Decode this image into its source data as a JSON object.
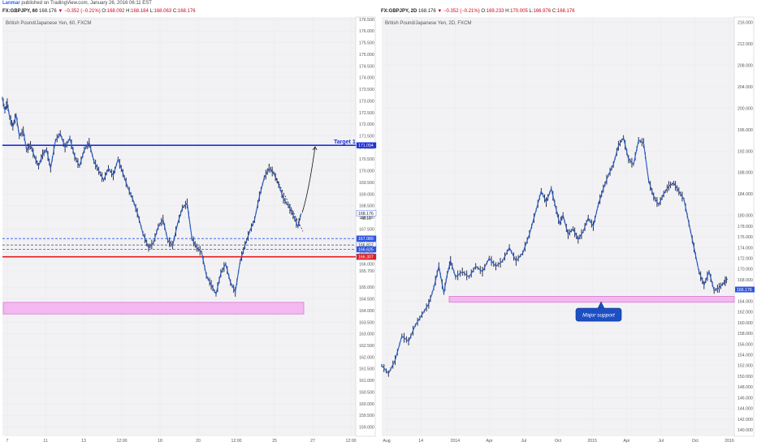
{
  "header": {
    "author": "Lanmar",
    "published_text": "published on TradingView.com, January 26, 2016 06:11 EST"
  },
  "colors": {
    "price_line": "#2f5fc4",
    "candle": "#1b1b2f",
    "resistance_line": "#1d2fd9",
    "support_line": "#e51c1c",
    "zone_fill": "#f3b8f0",
    "zone_stroke": "#d77ad3",
    "grid": "#ebebee",
    "background": "#f2f2f5"
  },
  "left": {
    "ohlc": {
      "symbol": "FX:GBPJPY, 60",
      "last": "168.176",
      "change": "▼ −0.352 (−0.21%)",
      "o": "168.092",
      "h": "168.184",
      "l": "168.063",
      "c": "168.176"
    },
    "title": "British Pound/Japanese Yen, 60, FXCM",
    "annotations": {
      "target_label": "Target 1",
      "countdown": "48:10"
    },
    "badges": [
      {
        "value": "171.094",
        "color": "#1d2fd9",
        "text_color": "#ffffff"
      },
      {
        "value": "168.176",
        "color": "#ffffff",
        "text_color": "#222222"
      },
      {
        "value": "167.089",
        "color": "#2d54e0",
        "text_color": "#ffffff"
      },
      {
        "value": "166.812",
        "color": "#ffffff",
        "text_color": "#222222"
      },
      {
        "value": "166.625",
        "color": "#2d54e0",
        "text_color": "#ffffff"
      },
      {
        "value": "166.307",
        "color": "#e51c1c",
        "text_color": "#ffffff"
      }
    ],
    "x_ticks": [
      "7",
      "11",
      "13",
      "12:00",
      "18",
      "20",
      "12:00",
      "25",
      "27",
      "12:00"
    ]
  },
  "right": {
    "ohlc": {
      "symbol": "FX:GBPJPY, 2D",
      "last": "168.176",
      "change": "▼ −0.352 (−0.21%)",
      "o": "169.233",
      "h": "170.005",
      "l": "166.976",
      "c": "168.176"
    },
    "title": "British Pound/Japanese Yen, 2D, FXCM",
    "annotations": {
      "callout": "Major support"
    },
    "badges": [
      {
        "value": "166.176",
        "color": "#2d54e0",
        "text_color": "#ffffff"
      }
    ],
    "x_ticks": [
      "Aug",
      "14",
      "2014",
      "Apr",
      "Jul",
      "Oct",
      "2015",
      "Apr",
      "Jul",
      "Oct",
      "2016"
    ]
  },
  "chart_data": [
    {
      "type": "line",
      "title": "British Pound/Japanese Yen, 60, FXCM",
      "ylim": [
        158.6,
        176.6
      ],
      "y_ticks": [
        "176.500",
        "176.000",
        "175.500",
        "175.000",
        "174.500",
        "174.000",
        "173.500",
        "173.000",
        "172.500",
        "172.000",
        "171.500",
        "171.000",
        "170.500",
        "170.000",
        "169.500",
        "169.000",
        "168.500",
        "168.000",
        "167.500",
        "167.000",
        "166.500",
        "166.000",
        "165.700",
        "165.000",
        "164.500",
        "164.000",
        "163.500",
        "163.000",
        "162.500",
        "162.000",
        "161.500",
        "161.000",
        "160.500",
        "160.000",
        "159.500",
        "159.000"
      ],
      "x_ticks": [
        "7",
        "11",
        "13",
        "12:00",
        "18",
        "20",
        "12:00",
        "25",
        "27",
        "12:00"
      ],
      "series": [
        {
          "x": [
            0,
            3,
            6,
            9,
            13,
            17,
            21,
            26,
            30,
            35,
            40,
            45,
            50,
            55,
            60,
            66,
            72,
            78,
            84,
            90,
            96,
            102,
            108,
            114,
            120,
            126,
            132,
            138,
            144,
            150,
            156,
            162,
            168,
            175,
            182,
            188,
            194,
            200,
            206,
            212,
            218,
            224,
            230,
            236,
            242,
            248,
            254,
            260,
            266,
            272,
            278,
            284,
            290,
            296,
            302,
            308,
            314,
            320,
            326,
            332,
            338,
            344,
            350,
            356,
            362,
            368,
            372
          ],
          "y": [
            173.1,
            172.6,
            172.9,
            172.3,
            171.9,
            172.4,
            171.5,
            171.7,
            170.9,
            171.1,
            170.6,
            170.2,
            170.7,
            170.9,
            170.1,
            171.3,
            171.6,
            171.0,
            171.4,
            170.6,
            170.2,
            170.9,
            171.2,
            170.4,
            170.0,
            169.6,
            170.1,
            169.8,
            170.5,
            169.9,
            169.3,
            168.8,
            168.2,
            167.3,
            166.7,
            166.9,
            167.6,
            167.9,
            167.0,
            166.8,
            167.7,
            168.4,
            168.6,
            167.1,
            166.7,
            166.5,
            165.5,
            165.1,
            164.7,
            165.6,
            166.0,
            165.2,
            164.8,
            166.1,
            166.8,
            167.4,
            167.9,
            168.9,
            169.7,
            170.1,
            169.9,
            169.4,
            168.8,
            168.5,
            168.1,
            167.6,
            168.176
          ]
        }
      ],
      "horizontal_lines": [
        {
          "value": 171.094,
          "color": "#1d2fd9",
          "style": "solid"
        },
        {
          "value": 167.089,
          "color": "#2d54e0",
          "style": "dashed"
        },
        {
          "value": 166.812,
          "color": "#444444",
          "style": "dashed"
        },
        {
          "value": 166.625,
          "color": "#2d54e0",
          "style": "dashed"
        },
        {
          "value": 166.307,
          "color": "#e51c1c",
          "style": "solid"
        }
      ],
      "zones": [
        {
          "from": 163.85,
          "to": 164.35
        }
      ]
    },
    {
      "type": "line",
      "title": "British Pound/Japanese Yen, 2D, FXCM",
      "ylim": [
        138.8,
        217.0
      ],
      "y_ticks": [
        "216.000",
        "212.000",
        "208.000",
        "204.000",
        "200.000",
        "196.000",
        "192.000",
        "188.000",
        "184.000",
        "180.000",
        "178.000",
        "176.000",
        "174.000",
        "172.000",
        "170.000",
        "168.000",
        "166.000",
        "164.000",
        "162.000",
        "160.000",
        "158.000",
        "156.000",
        "154.000",
        "152.000",
        "150.000",
        "148.000",
        "146.000",
        "144.000",
        "142.000",
        "140.000"
      ],
      "x_ticks": [
        "Aug",
        "14",
        "2014",
        "Apr",
        "Jul",
        "Oct",
        "2015",
        "Apr",
        "Jul",
        "Oct",
        "2016"
      ],
      "series": [
        {
          "x": [
            0,
            8,
            16,
            24,
            32,
            40,
            48,
            56,
            62,
            68,
            74,
            78,
            82,
            88,
            96,
            104,
            112,
            120,
            128,
            136,
            144,
            152,
            160,
            168,
            176,
            184,
            190,
            196,
            202,
            208,
            212,
            216,
            222,
            228,
            234,
            240,
            246,
            252,
            258,
            264,
            270,
            276,
            282,
            288,
            294,
            300,
            306,
            312,
            318,
            324,
            330,
            336,
            342,
            348,
            354,
            360,
            366,
            372,
            378,
            384,
            390,
            396,
            402,
            408,
            412
          ],
          "y": [
            152.0,
            150.5,
            153.0,
            157.5,
            156.5,
            159.5,
            161.5,
            163.5,
            166.5,
            170.5,
            165.5,
            169.0,
            171.5,
            168.5,
            169.5,
            168.5,
            170.5,
            169.5,
            172.0,
            170.5,
            171.5,
            174.0,
            171.5,
            173.0,
            176.5,
            181.0,
            184.5,
            182.5,
            185.0,
            181.0,
            178.5,
            180.0,
            176.5,
            177.5,
            175.5,
            177.0,
            179.5,
            178.0,
            182.0,
            185.0,
            187.5,
            189.5,
            193.0,
            194.5,
            190.5,
            189.5,
            194.0,
            193.5,
            186.5,
            183.5,
            182.0,
            184.0,
            185.5,
            186.0,
            184.5,
            183.0,
            178.5,
            174.0,
            169.5,
            167.0,
            169.5,
            166.0,
            166.5,
            167.5,
            168.176
          ]
        }
      ],
      "zones": [
        {
          "from": 163.8,
          "to": 164.9
        }
      ]
    }
  ]
}
